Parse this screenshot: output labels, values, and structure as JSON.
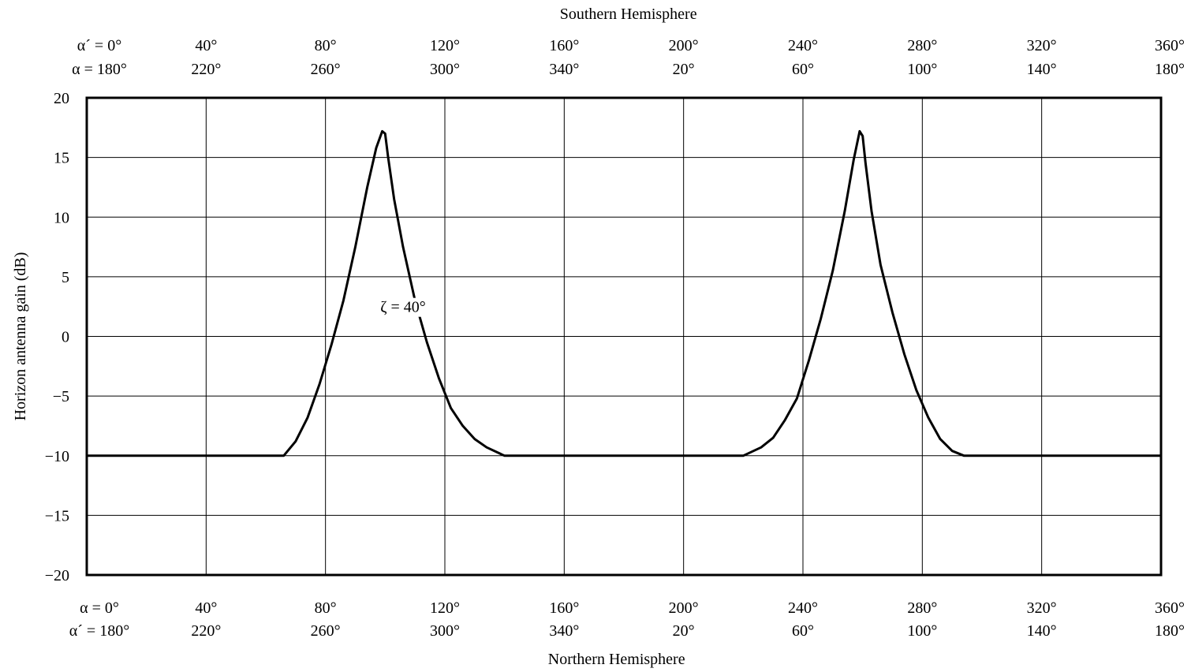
{
  "chart_data": {
    "type": "line",
    "top_title": "Southern Hemisphere",
    "bottom_title": "Northern Hemisphere",
    "ylabel": "Horizon antenna gain (dB)",
    "xlim": [
      0,
      360
    ],
    "ylim": [
      -20,
      20
    ],
    "grid": true,
    "y_ticks": [
      "20",
      "15",
      "10",
      "5",
      "0",
      "−5",
      "−10",
      "−15",
      "−20"
    ],
    "y_tick_values": [
      20,
      15,
      10,
      5,
      0,
      -5,
      -10,
      -15,
      -20
    ],
    "x_tick_values": [
      0,
      40,
      80,
      120,
      160,
      200,
      240,
      280,
      320,
      360
    ],
    "top_ticks_row1": [
      "α´ = 0°",
      "40°",
      "80°",
      "120°",
      "160°",
      "200°",
      "240°",
      "280°",
      "320°",
      "360°"
    ],
    "top_ticks_row2": [
      "α = 180°",
      "220°",
      "260°",
      "300°",
      "340°",
      "20°",
      "60°",
      "100°",
      "140°",
      "180°"
    ],
    "bottom_ticks_row1": [
      "α = 0°",
      "40°",
      "80°",
      "120°",
      "160°",
      "200°",
      "240°",
      "280°",
      "320°",
      "360°"
    ],
    "bottom_ticks_row2": [
      "α´ = 180°",
      "220°",
      "260°",
      "300°",
      "340°",
      "20°",
      "60°",
      "100°",
      "140°",
      "180°"
    ],
    "annotation": {
      "text": "ζ = 40°",
      "x": 106,
      "y": 2.5
    },
    "series": [
      {
        "x": [
          0,
          66,
          70,
          74,
          78,
          82,
          86,
          90,
          94,
          97,
          99,
          100,
          101,
          103,
          106,
          110,
          114,
          118,
          122,
          126,
          130,
          134,
          140,
          200,
          220,
          226,
          230,
          234,
          238,
          242,
          246,
          250,
          254,
          257,
          259,
          260,
          261,
          263,
          266,
          270,
          274,
          278,
          282,
          286,
          290,
          294,
          360
        ],
        "y": [
          -10,
          -10,
          -8.8,
          -6.8,
          -4,
          -0.7,
          3,
          7.5,
          12.5,
          15.8,
          17.2,
          17,
          15,
          11.5,
          7.5,
          3,
          -0.5,
          -3.5,
          -6,
          -7.5,
          -8.6,
          -9.3,
          -10,
          -10,
          -10,
          -9.3,
          -8.5,
          -7,
          -5.2,
          -2,
          1.5,
          5.5,
          10.5,
          14.8,
          17.2,
          16.8,
          14.5,
          10.5,
          6,
          2,
          -1.5,
          -4.5,
          -6.8,
          -8.6,
          -9.6,
          -10,
          -10
        ]
      }
    ]
  }
}
